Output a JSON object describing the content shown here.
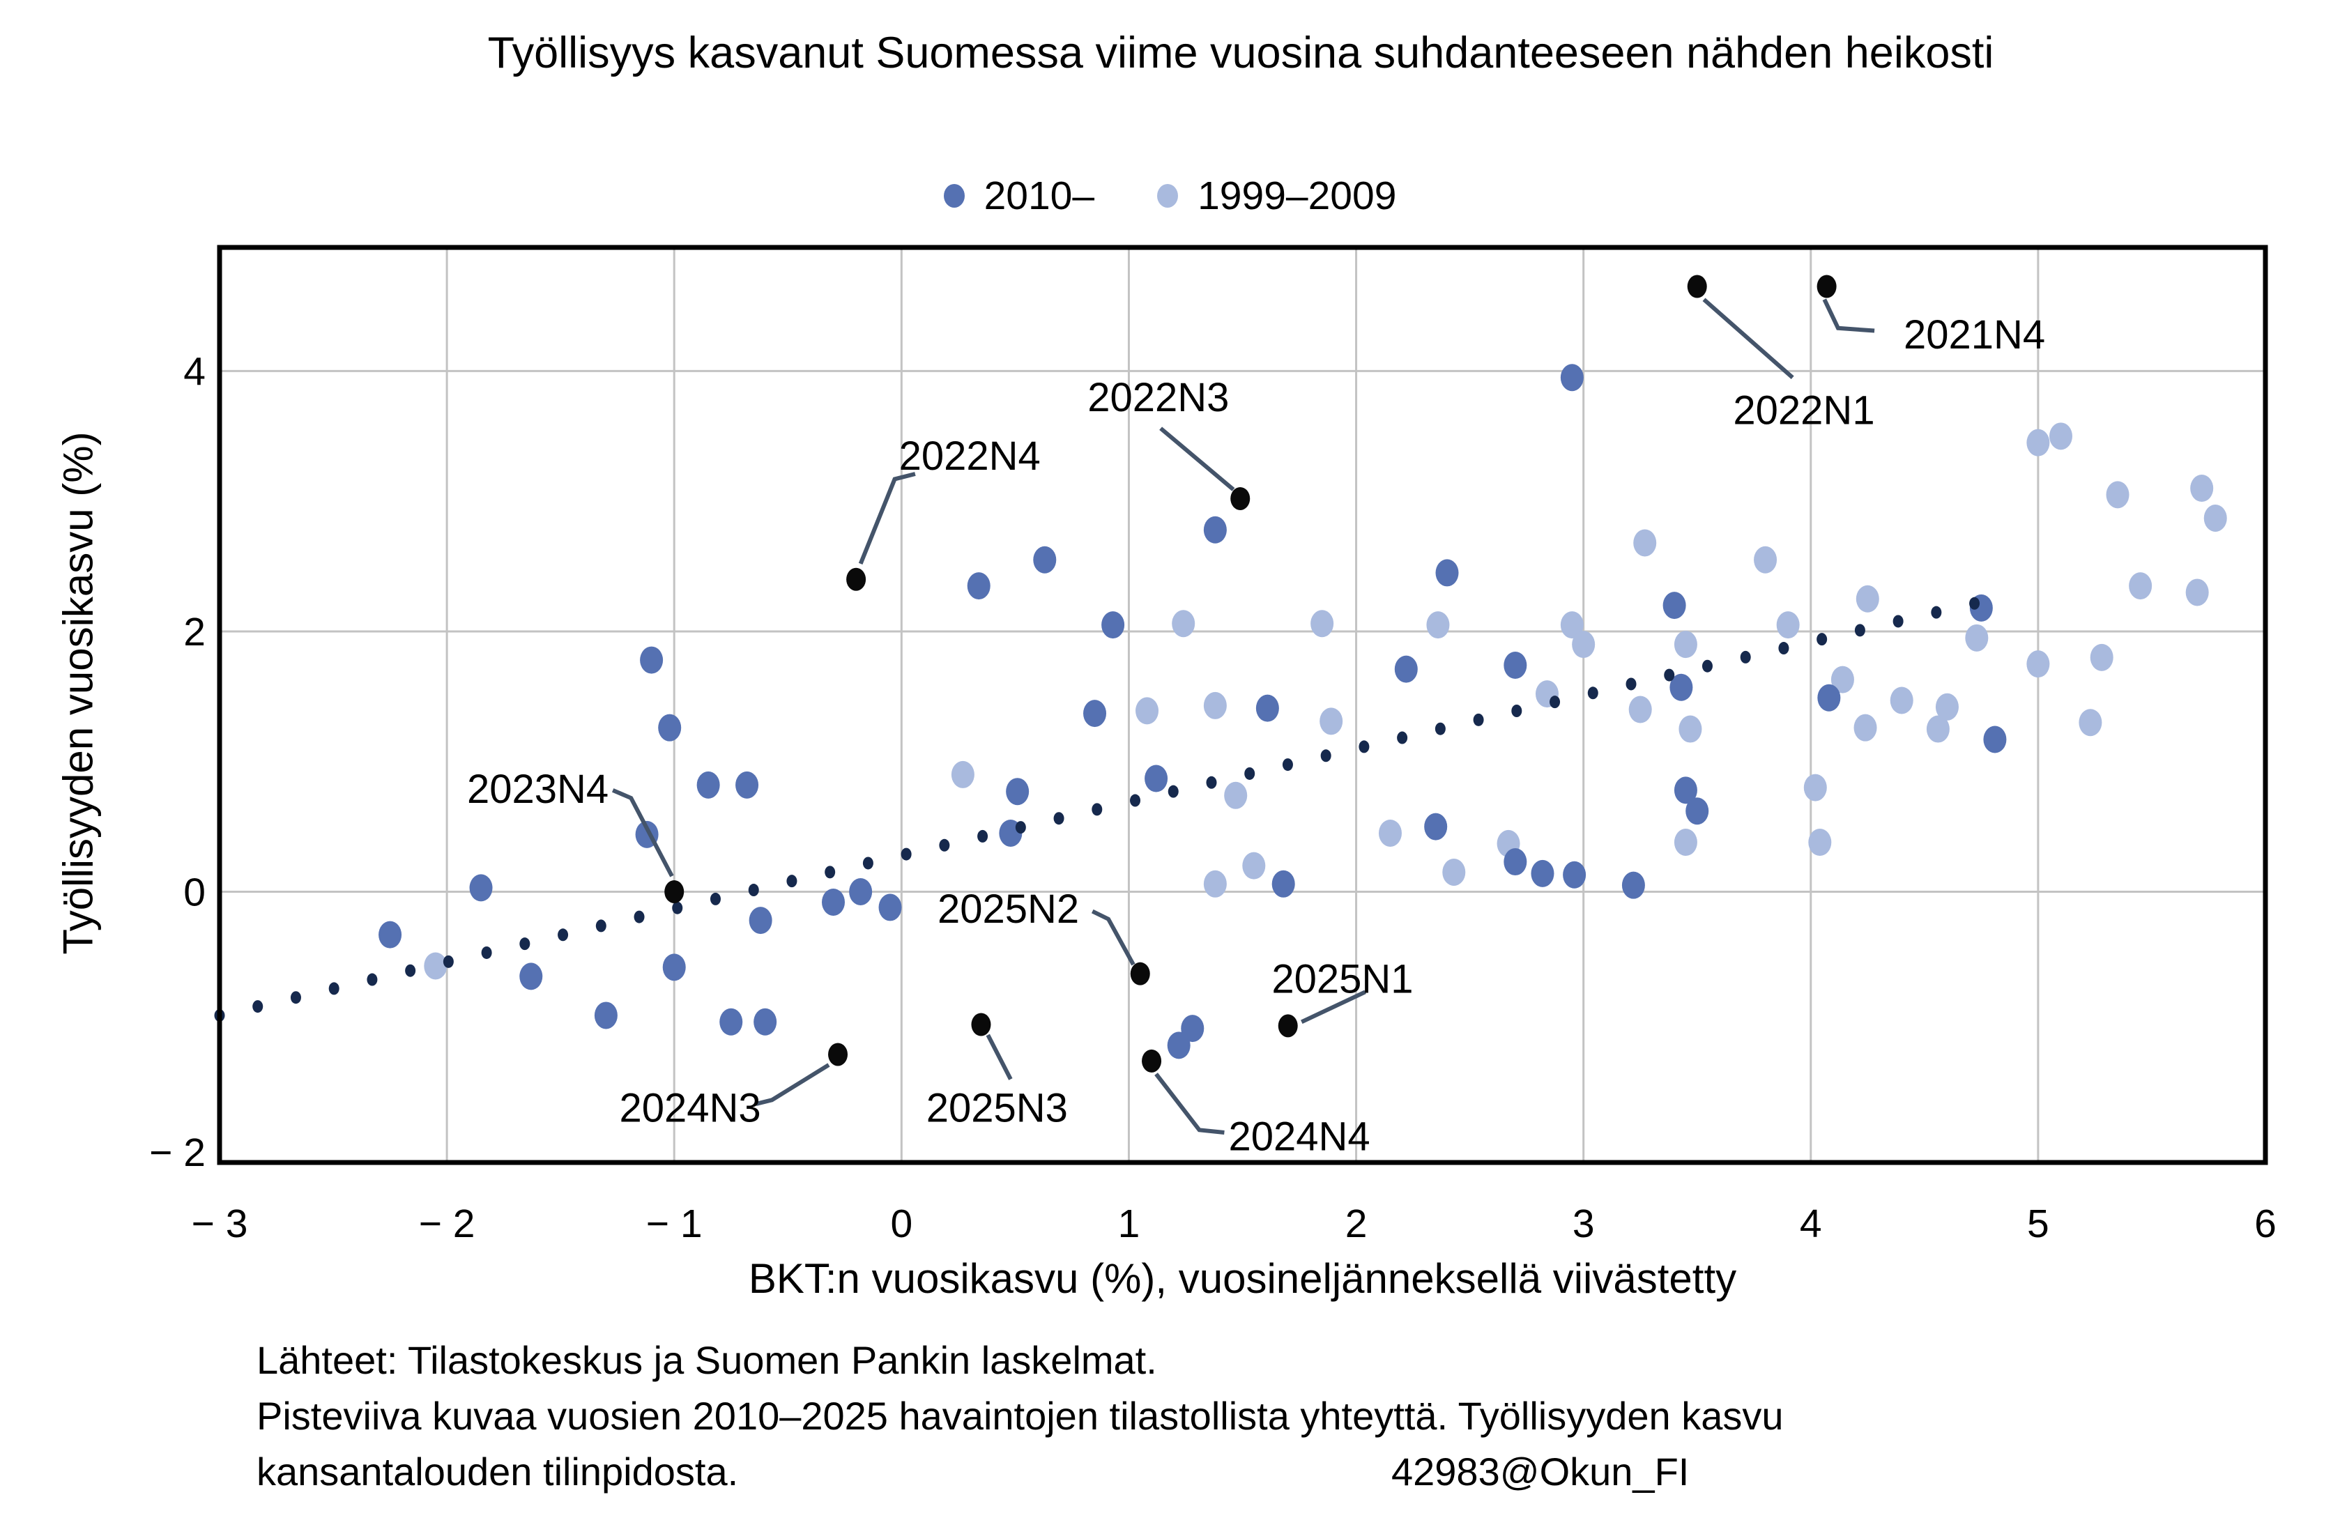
{
  "title": "Työllisyys kasvanut Suomessa viime vuosina suhdanteeseen nähden heikosti",
  "legend": {
    "items": [
      {
        "label": "2010–",
        "color": "#5571b2"
      },
      {
        "label": "1999–2009",
        "color": "#a9bade"
      }
    ]
  },
  "axes": {
    "x": {
      "label": "BKT:n vuosikasvu (%), vuosineljänneksellä viivästetty",
      "min": -3,
      "max": 6,
      "ticks": [
        -3,
        -2,
        -1,
        0,
        1,
        2,
        3,
        4,
        5,
        6
      ],
      "tick_labels": [
        "− 3",
        "− 2",
        "− 1",
        "0",
        "1",
        "2",
        "3",
        "4",
        "5",
        "6"
      ]
    },
    "y": {
      "label": "Työllisyyden vuosikasvu (%)",
      "min": -2.08,
      "max": 4.95,
      "ticks": [
        4,
        2,
        0,
        -2
      ],
      "tick_labels": [
        "4",
        "2",
        "0",
        "− 2"
      ]
    }
  },
  "footer": {
    "line1": "Lähteet: Tilastokeskus ja Suomen Pankin laskelmat.",
    "line2": "Pisteviiva kuvaa vuosien 2010–2025 havaintojen tilastollista yhteyttä. Työllisyyden kasvu",
    "line3": "kansantalouden tilinpidosta.",
    "watermark": "42983@Okun_FI"
  },
  "chart_data": {
    "type": "scatter",
    "title": "Työllisyys kasvanut Suomessa viime vuosina suhdanteeseen nähden heikosti",
    "xlabel": "BKT:n vuosikasvu (%), vuosineljänneksellä viivästetty",
    "ylabel": "Työllisyyden vuosikasvu (%)",
    "xlim": [
      -3,
      6
    ],
    "ylim": [
      -2.08,
      4.95
    ],
    "grid": {
      "x_gridlines": [
        -2,
        -1,
        0,
        1,
        2,
        3,
        4,
        5
      ],
      "y_gridlines": [
        4,
        2,
        0
      ],
      "color": "#c3c3c3"
    },
    "series": [
      {
        "name": "1999–2009",
        "color": "#a9bade",
        "points": [
          [
            -2.05,
            -0.57
          ],
          [
            0.27,
            0.9
          ],
          [
            1.08,
            1.39
          ],
          [
            1.24,
            2.06
          ],
          [
            1.38,
            1.43
          ],
          [
            1.38,
            0.06
          ],
          [
            1.47,
            0.74
          ],
          [
            1.55,
            0.2
          ],
          [
            1.85,
            2.06
          ],
          [
            1.89,
            1.31
          ],
          [
            2.15,
            0.45
          ],
          [
            2.36,
            2.05
          ],
          [
            2.43,
            0.15
          ],
          [
            2.67,
            0.37
          ],
          [
            2.84,
            1.52
          ],
          [
            2.95,
            2.05
          ],
          [
            3.0,
            1.9
          ],
          [
            3.27,
            2.68
          ],
          [
            3.25,
            1.4
          ],
          [
            3.45,
            1.9
          ],
          [
            3.47,
            1.25
          ],
          [
            3.45,
            0.38
          ],
          [
            3.8,
            2.55
          ],
          [
            3.9,
            2.05
          ],
          [
            4.02,
            0.8
          ],
          [
            4.04,
            0.38
          ],
          [
            4.14,
            1.63
          ],
          [
            4.24,
            1.26
          ],
          [
            4.25,
            2.25
          ],
          [
            4.4,
            1.47
          ],
          [
            4.56,
            1.25
          ],
          [
            4.6,
            1.42
          ],
          [
            4.73,
            1.95
          ],
          [
            5.0,
            1.75
          ],
          [
            5.0,
            3.45
          ],
          [
            5.1,
            3.5
          ],
          [
            5.23,
            1.3
          ],
          [
            5.28,
            1.8
          ],
          [
            5.35,
            3.05
          ],
          [
            5.45,
            2.35
          ],
          [
            5.7,
            2.3
          ],
          [
            5.72,
            3.1
          ],
          [
            5.78,
            2.87
          ]
        ]
      },
      {
        "name": "2010–",
        "color": "#5571b2",
        "points": [
          [
            -2.25,
            -0.33
          ],
          [
            -1.85,
            0.03
          ],
          [
            -1.63,
            -0.65
          ],
          [
            -1.3,
            -0.95
          ],
          [
            -1.12,
            0.44
          ],
          [
            -1.1,
            1.78
          ],
          [
            -1.02,
            1.26
          ],
          [
            -1.0,
            -0.58
          ],
          [
            -0.85,
            0.82
          ],
          [
            -0.75,
            -1.0
          ],
          [
            -0.68,
            0.82
          ],
          [
            -0.62,
            -0.22
          ],
          [
            -0.6,
            -1.0
          ],
          [
            -0.3,
            -0.08
          ],
          [
            -0.18,
            0.0
          ],
          [
            -0.05,
            -0.12
          ],
          [
            0.34,
            2.35
          ],
          [
            0.48,
            0.45
          ],
          [
            0.51,
            0.77
          ],
          [
            0.63,
            2.55
          ],
          [
            0.93,
            2.05
          ],
          [
            0.85,
            1.37
          ],
          [
            1.12,
            0.87
          ],
          [
            1.22,
            -1.18
          ],
          [
            1.28,
            -1.05
          ],
          [
            1.38,
            2.78
          ],
          [
            1.61,
            1.41
          ],
          [
            1.68,
            0.06
          ],
          [
            2.22,
            1.71
          ],
          [
            2.35,
            0.5
          ],
          [
            2.4,
            2.45
          ],
          [
            2.7,
            1.74
          ],
          [
            2.7,
            0.23
          ],
          [
            2.82,
            0.14
          ],
          [
            2.95,
            3.95
          ],
          [
            2.96,
            0.13
          ],
          [
            3.22,
            0.05
          ],
          [
            3.4,
            2.2
          ],
          [
            3.43,
            1.57
          ],
          [
            3.45,
            0.78
          ],
          [
            3.5,
            0.62
          ],
          [
            4.08,
            1.49
          ],
          [
            4.75,
            2.18
          ],
          [
            4.81,
            1.17
          ]
        ]
      }
    ],
    "annotated_points": {
      "name": "Viimeaikaiset neljännekset",
      "color": "#0a0a0a",
      "connector_color": "#44546a",
      "points": [
        {
          "label": "2021N4",
          "x": 4.07,
          "y": 4.65,
          "lx": 4.72,
          "ly": 4.28,
          "line": [
            [
              4.06,
              4.55
            ],
            [
              4.12,
              4.33
            ],
            [
              4.28,
              4.31
            ]
          ]
        },
        {
          "label": "2022N1",
          "x": 3.5,
          "y": 4.65,
          "lx": 3.97,
          "ly": 3.7,
          "line": [
            [
              3.53,
              4.55
            ],
            [
              3.92,
              3.95
            ]
          ]
        },
        {
          "label": "2022N3",
          "x": 1.49,
          "y": 3.02,
          "lx": 1.13,
          "ly": 3.8,
          "line": [
            [
              1.14,
              3.56
            ],
            [
              1.46,
              3.09
            ]
          ]
        },
        {
          "label": "2022N4",
          "x": -0.2,
          "y": 2.4,
          "lx": 0.3,
          "ly": 3.35,
          "line": [
            [
              0.06,
              3.21
            ],
            [
              -0.03,
              3.17
            ],
            [
              -0.18,
              2.52
            ]
          ]
        },
        {
          "label": "2023N4",
          "x": -1.0,
          "y": 0.0,
          "lx": -1.6,
          "ly": 0.79,
          "line": [
            [
              -1.27,
              0.78
            ],
            [
              -1.19,
              0.72
            ],
            [
              -1.01,
              0.12
            ]
          ]
        },
        {
          "label": "2024N3",
          "x": -0.28,
          "y": -1.25,
          "lx": -0.93,
          "ly": -1.66,
          "line": [
            [
              -0.64,
              -1.63
            ],
            [
              -0.57,
              -1.6
            ],
            [
              -0.32,
              -1.33
            ]
          ]
        },
        {
          "label": "2024N4",
          "x": 1.1,
          "y": -1.3,
          "lx": 1.75,
          "ly": -1.88,
          "line": [
            [
              1.12,
              -1.4
            ],
            [
              1.31,
              -1.83
            ],
            [
              1.42,
              -1.85
            ]
          ]
        },
        {
          "label": "2025N1",
          "x": 1.7,
          "y": -1.03,
          "lx": 1.94,
          "ly": -0.67,
          "line": [
            [
              2.04,
              -0.77
            ],
            [
              1.76,
              -1.0
            ]
          ]
        },
        {
          "label": "2025N2",
          "x": 1.05,
          "y": -0.63,
          "lx": 0.47,
          "ly": -0.13,
          "line": [
            [
              0.84,
              -0.15
            ],
            [
              0.91,
              -0.21
            ],
            [
              1.02,
              -0.56
            ]
          ]
        },
        {
          "label": "2025N3",
          "x": 0.35,
          "y": -1.02,
          "lx": 0.42,
          "ly": -1.66,
          "line": [
            [
              0.38,
              -1.1
            ],
            [
              0.48,
              -1.44
            ]
          ]
        }
      ]
    },
    "trend": {
      "style": "dotted",
      "color": "#16294d",
      "x_start": -3,
      "x_end": 4.72,
      "slope": 0.41,
      "intercept": 0.28,
      "description": "Pisteviiva: vuosien 2010–2025 havaintojen tilastollinen yhteys"
    }
  }
}
